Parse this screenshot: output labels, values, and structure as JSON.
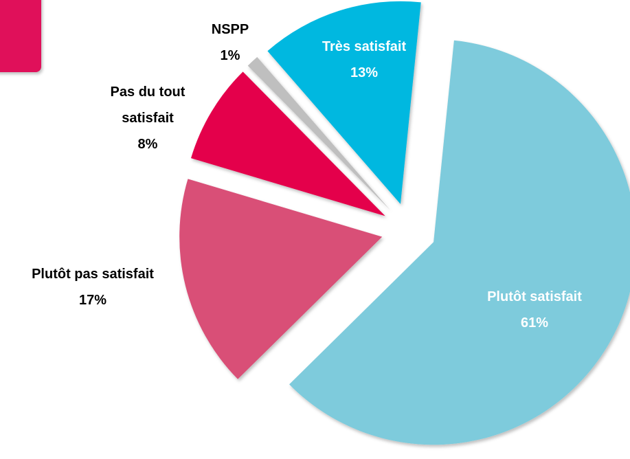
{
  "chart_data": {
    "type": "pie",
    "categories": [
      "Très satisfait",
      "Plutôt satisfait",
      "Plutôt pas satisfait",
      "Pas du tout satisfait",
      "NSPP"
    ],
    "values": [
      13,
      61,
      17,
      8,
      1
    ],
    "value_labels": [
      "13%",
      "61%",
      "17%",
      "8%",
      "1%"
    ],
    "colors": [
      "#00b8e0",
      "#7ecbdc",
      "#d94f77",
      "#e4004b",
      "#bfbfbf"
    ]
  }
}
